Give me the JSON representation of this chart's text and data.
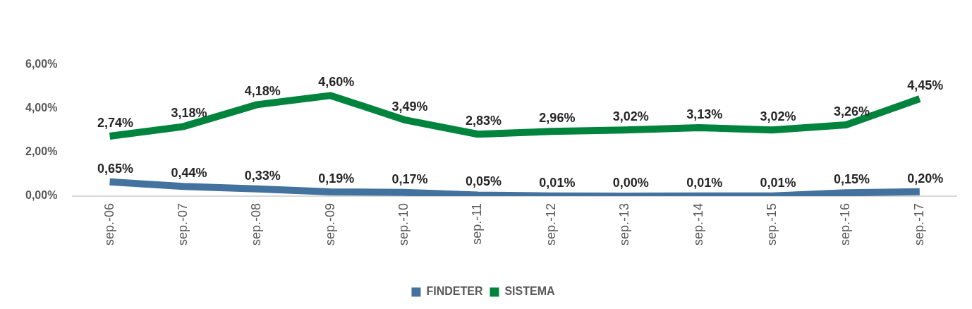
{
  "chart_data": {
    "type": "line",
    "categories": [
      "sep.-06",
      "sep.-07",
      "sep.-08",
      "sep.-09",
      "sep.-10",
      "sep.-11",
      "sep.-12",
      "sep.-13",
      "sep.-14",
      "sep.-15",
      "sep.-16",
      "sep.-17"
    ],
    "series": [
      {
        "name": "FINDETER",
        "color": "#44729e",
        "values": [
          0.65,
          0.44,
          0.33,
          0.19,
          0.17,
          0.05,
          0.01,
          0.0,
          0.01,
          0.01,
          0.15,
          0.2
        ],
        "value_labels": [
          "0,65%",
          "0,44%",
          "0,33%",
          "0,19%",
          "0,17%",
          "0,05%",
          "0,01%",
          "0,00%",
          "0,01%",
          "0,01%",
          "0,15%",
          "0,20%"
        ]
      },
      {
        "name": "SISTEMA",
        "color": "#00843d",
        "values": [
          2.74,
          3.18,
          4.18,
          4.6,
          3.49,
          2.83,
          2.96,
          3.02,
          3.13,
          3.02,
          3.26,
          4.45
        ],
        "value_labels": [
          "2,74%",
          "3,18%",
          "4,18%",
          "4,60%",
          "3,49%",
          "2,83%",
          "2,96%",
          "3,02%",
          "3,13%",
          "3,02%",
          "3,26%",
          "4,45%"
        ]
      }
    ],
    "ylim": [
      0,
      6
    ],
    "yticks": [
      {
        "value": 0,
        "label": "0,00%"
      },
      {
        "value": 2,
        "label": "2,00%"
      },
      {
        "value": 4,
        "label": "4,00%"
      },
      {
        "value": 6,
        "label": "6,00%"
      }
    ],
    "grid": false,
    "legend": "bottom",
    "marker": "none",
    "line_style": "solid"
  }
}
